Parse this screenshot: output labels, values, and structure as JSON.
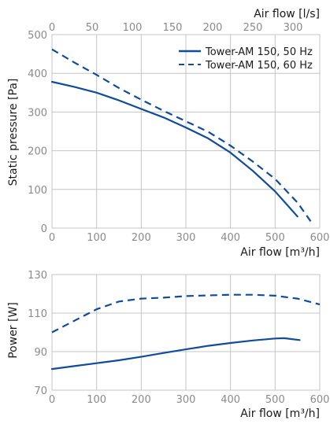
{
  "chart_data": [
    {
      "type": "line",
      "xlabel": "Air flow [m³/h]",
      "ylabel": "Static pressure [Pa]",
      "x2label": "Air flow [l/s]",
      "xlim": [
        0,
        600
      ],
      "ylim": [
        0,
        500
      ],
      "x2lim": [
        0,
        333.3
      ],
      "xticks": [
        "0",
        "100",
        "200",
        "300",
        "400",
        "500",
        "600"
      ],
      "yticks": [
        "0",
        "100",
        "200",
        "300",
        "400",
        "500"
      ],
      "x2ticks": [
        "0",
        "50",
        "100",
        "150",
        "200",
        "250",
        "300"
      ],
      "grid": true,
      "legend_position": "top-right",
      "series": [
        {
          "name": "Tower-AM 150, 50 Hz",
          "style": "solid",
          "color": "#0f4c9c",
          "x": [
            0,
            50,
            100,
            150,
            200,
            250,
            300,
            350,
            400,
            450,
            500,
            550
          ],
          "y": [
            378,
            365,
            350,
            330,
            308,
            286,
            260,
            232,
            195,
            148,
            95,
            30
          ]
        },
        {
          "name": "Tower-AM 150, 60 Hz",
          "style": "dashed",
          "color": "#0f4c9c",
          "x": [
            0,
            50,
            100,
            150,
            200,
            250,
            300,
            350,
            400,
            450,
            500,
            550,
            583
          ],
          "y": [
            462,
            428,
            396,
            362,
            332,
            303,
            276,
            249,
            213,
            172,
            127,
            66,
            12
          ]
        }
      ]
    },
    {
      "type": "line",
      "xlabel": "Air flow [m³/h]",
      "ylabel": "Power [W]",
      "xlim": [
        0,
        600
      ],
      "ylim": [
        70,
        130
      ],
      "xticks": [
        "0",
        "100",
        "200",
        "300",
        "400",
        "500",
        "600"
      ],
      "yticks": [
        "70",
        "90",
        "110",
        "130"
      ],
      "grid": true,
      "series": [
        {
          "style": "solid",
          "color": "#0f4c9c",
          "x": [
            0,
            50,
            100,
            150,
            200,
            250,
            300,
            350,
            400,
            450,
            500,
            520,
            555
          ],
          "y": [
            81,
            82.5,
            84,
            85.5,
            87.3,
            89.3,
            91.2,
            93,
            94.5,
            95.8,
            96.8,
            97,
            96
          ]
        },
        {
          "style": "dashed",
          "color": "#0f4c9c",
          "x": [
            0,
            50,
            100,
            150,
            200,
            250,
            300,
            350,
            400,
            450,
            500,
            550,
            600
          ],
          "y": [
            100,
            106,
            112,
            116,
            117.5,
            118,
            118.8,
            119.2,
            119.5,
            119.5,
            119,
            117.5,
            114.5
          ]
        }
      ]
    }
  ]
}
